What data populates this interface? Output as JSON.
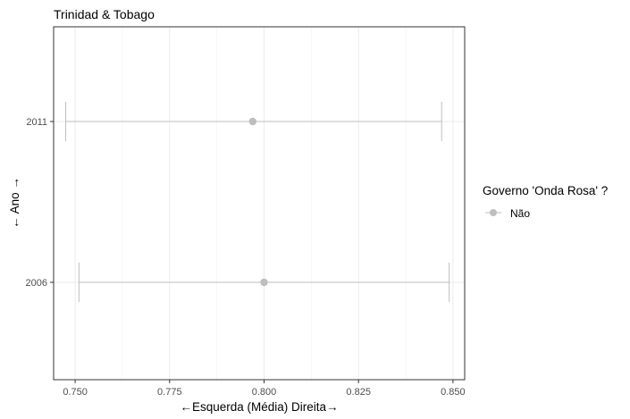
{
  "chart_data": {
    "type": "scatter",
    "title": "Trinidad & Tobago",
    "xlabel": "←Esquerda (Média) Direita→",
    "ylabel": "← Ano →",
    "x_ticks": [
      "0.750",
      "0.775",
      "0.800",
      "0.825",
      "0.850"
    ],
    "x_tick_values": [
      0.75,
      0.775,
      0.8,
      0.825,
      0.85
    ],
    "xlim": [
      0.7443,
      0.8531
    ],
    "categories": [
      "2006",
      "2011"
    ],
    "grid": true,
    "legend": {
      "title": "Governo 'Onda Rosa' ?",
      "position": "right",
      "entries": [
        {
          "label": "Não",
          "color": "#bebebe"
        }
      ]
    },
    "points": [
      {
        "category": "2011",
        "value": 0.797,
        "lower": 0.7475,
        "upper": 0.847
      },
      {
        "category": "2006",
        "value": 0.8,
        "lower": 0.751,
        "upper": 0.849
      }
    ]
  }
}
